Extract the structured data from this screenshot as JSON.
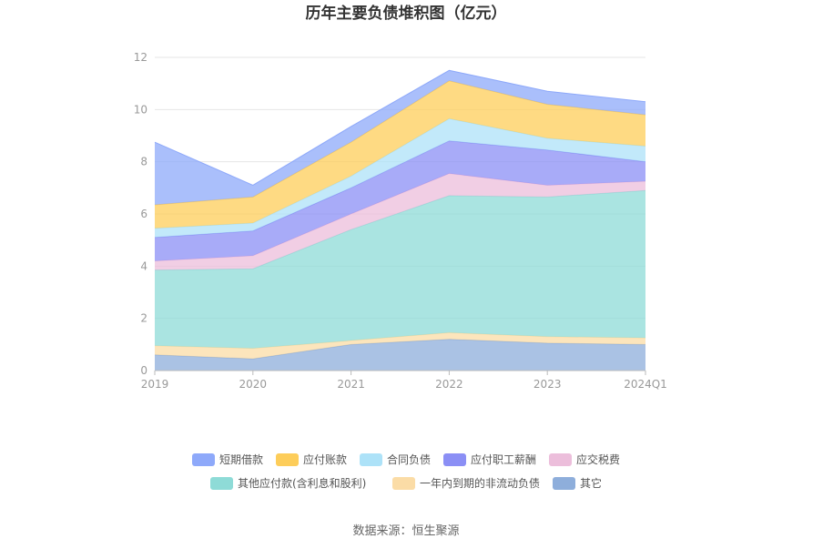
{
  "chart_data": {
    "type": "area",
    "stacked": true,
    "title": "历年主要负债堆积图（亿元）",
    "x": [
      "2019",
      "2020",
      "2021",
      "2022",
      "2023",
      "2024Q1"
    ],
    "ylim": [
      0,
      12
    ],
    "yticks": [
      "0",
      "2",
      "4",
      "6",
      "8",
      "10",
      "12"
    ],
    "grid": true,
    "legend_position": "bottom",
    "series": [
      {
        "name": "其它",
        "color": "#8eaedb",
        "values": [
          0.6,
          0.45,
          1.0,
          1.2,
          1.05,
          1.0
        ]
      },
      {
        "name": "一年内到期的非流动负债",
        "color": "#fbdca6",
        "values": [
          0.35,
          0.4,
          0.15,
          0.25,
          0.25,
          0.25
        ]
      },
      {
        "name": "其他应付款(含利息和股利)",
        "color": "#8edbd7",
        "values": [
          2.9,
          3.05,
          4.25,
          5.25,
          5.35,
          5.65
        ]
      },
      {
        "name": "应交税费",
        "color": "#ecbedb",
        "values": [
          0.35,
          0.5,
          0.6,
          0.85,
          0.45,
          0.35
        ]
      },
      {
        "name": "应付职工薪酬",
        "color": "#8b8ff5",
        "values": [
          0.9,
          0.95,
          1.0,
          1.25,
          1.35,
          0.75
        ]
      },
      {
        "name": "合同负债",
        "color": "#ade2f8",
        "values": [
          0.35,
          0.3,
          0.45,
          0.85,
          0.45,
          0.6
        ]
      },
      {
        "name": "应付账款",
        "color": "#fdcd5a",
        "values": [
          0.9,
          1.0,
          1.3,
          1.45,
          1.3,
          1.2
        ]
      },
      {
        "name": "短期借款",
        "color": "#8ea9fa",
        "values": [
          2.4,
          0.45,
          0.6,
          0.4,
          0.5,
          0.5
        ]
      }
    ],
    "legend_order": [
      "短期借款",
      "应付账款",
      "合同负债",
      "应付职工薪酬",
      "应交税费",
      "其他应付款(含利息和股利)",
      "一年内到期的非流动负债",
      "其它"
    ]
  },
  "source": "数据来源：恒生聚源"
}
